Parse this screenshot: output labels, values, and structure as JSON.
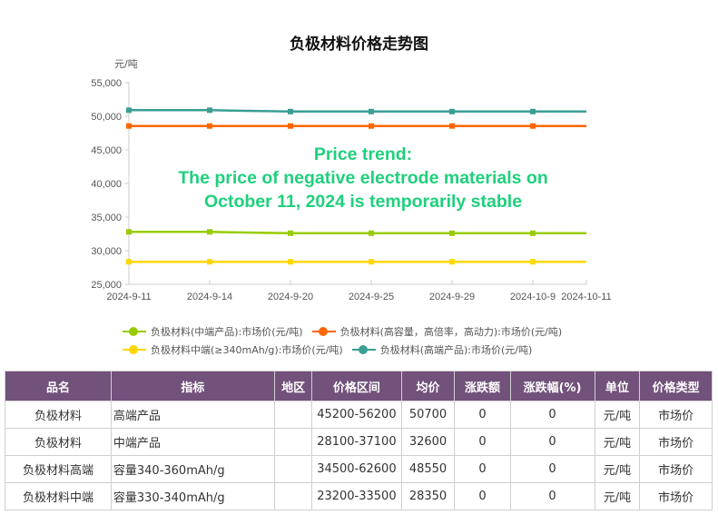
{
  "chart_title": "负极材料价格走势图",
  "y_unit": "元/吨",
  "annotation": {
    "line1": "Price trend:",
    "line2": "The price of negative electrode materials on",
    "line3": "October 11, 2024 is temporarily stable"
  },
  "legend": [
    {
      "label": "负极材料(中端产品):市场价(元/吨)",
      "color": "#99cc00"
    },
    {
      "label": "负极材料(高容量，高倍率，高动力):市场价(元/吨)",
      "color": "#ff6600"
    },
    {
      "label": "负极材料中端(≥340mAh/g):市场价(元/吨)",
      "color": "#ffd700"
    },
    {
      "label": "负极材料(高端产品):市场价(元/吨)",
      "color": "#3a9e94"
    }
  ],
  "chart_data": {
    "type": "line",
    "title": "负极材料价格走势图",
    "xlabel": "",
    "ylabel": "元/吨",
    "ylim": [
      25000,
      55000
    ],
    "yticks": [
      "25,000",
      "30,000",
      "35,000",
      "40,000",
      "45,000",
      "50,000",
      "55,000"
    ],
    "categories": [
      "2024-9-11",
      "2024-9-14",
      "2024-9-20",
      "2024-9-25",
      "2024-9-29",
      "2024-10-9",
      "2024-10-11"
    ],
    "grid": false,
    "legend_position": "bottom",
    "series": [
      {
        "name": "负极材料(中端产品):市场价(元/吨)",
        "color": "#99cc00",
        "values": [
          32800,
          32800,
          32600,
          32600,
          32600,
          32600,
          32600
        ]
      },
      {
        "name": "负极材料(高容量，高倍率，高动力):市场价(元/吨)",
        "color": "#ff6600",
        "values": [
          48550,
          48550,
          48550,
          48550,
          48550,
          48550,
          48550
        ]
      },
      {
        "name": "负极材料中端(≥340mAh/g):市场价(元/吨)",
        "color": "#ffd700",
        "values": [
          28350,
          28350,
          28350,
          28350,
          28350,
          28350,
          28350
        ]
      },
      {
        "name": "负极材料(高端产品):市场价(元/吨)",
        "color": "#3a9e94",
        "values": [
          50900,
          50900,
          50700,
          50700,
          50700,
          50700,
          50700
        ]
      }
    ]
  },
  "table": {
    "headers": [
      "品名",
      "指标",
      "地区",
      "价格区间",
      "均价",
      "涨跌额",
      "涨跌幅(%)",
      "单位",
      "价格类型"
    ],
    "rows": [
      [
        "负极材料",
        "高端产品",
        "",
        "45200-56200",
        "50700",
        "0",
        "0",
        "元/吨",
        "市场价"
      ],
      [
        "负极材料",
        "中端产品",
        "",
        "28100-37100",
        "32600",
        "0",
        "0",
        "元/吨",
        "市场价"
      ],
      [
        "负极材料高端",
        "容量340-360mAh/g",
        "",
        "34500-62600",
        "48550",
        "0",
        "0",
        "元/吨",
        "市场价"
      ],
      [
        "负极材料中端",
        "容量330-340mAh/g",
        "",
        "23200-33500",
        "28350",
        "0",
        "0",
        "元/吨",
        "市场价"
      ]
    ]
  }
}
